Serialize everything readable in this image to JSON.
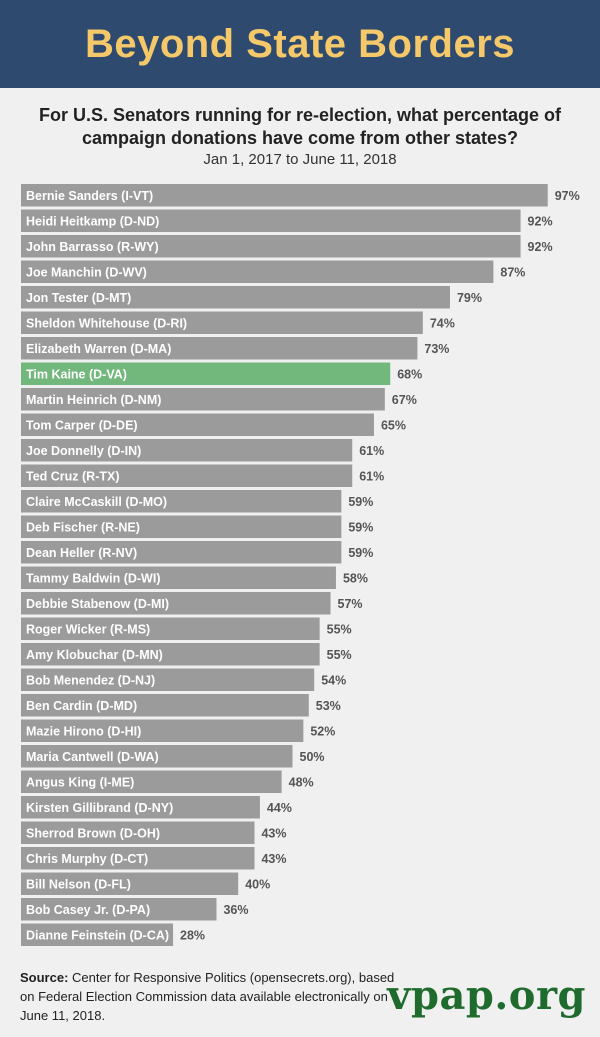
{
  "header": {
    "title": "Beyond State Borders"
  },
  "subtitle": "For U.S. Senators running for re-election, what percentage of campaign donations have come from other states?",
  "date_range": "Jan 1, 2017 to June 11, 2018",
  "source": {
    "label": "Source:",
    "text": " Center for Responsive Politics (opensecrets.org), based on Federal Election Commission data available electronically on June 11, 2018."
  },
  "logo": "vpap.org",
  "colors": {
    "bar": "#9b9b9b",
    "highlight": "#72b77b",
    "banner": "#2e4a6e",
    "title": "#f5c96a",
    "logo": "#1f6b2e"
  },
  "chart_data": {
    "type": "bar",
    "orientation": "horizontal",
    "title": "Beyond State Borders",
    "value_format": "percent",
    "xlim": [
      0,
      100
    ],
    "highlight": "Tim Kaine (D-VA)",
    "categories": [
      "Bernie Sanders (I-VT)",
      "Heidi Heitkamp (D-ND)",
      "John Barrasso (R-WY)",
      "Joe Manchin (D-WV)",
      "Jon Tester (D-MT)",
      "Sheldon Whitehouse (D-RI)",
      "Elizabeth Warren (D-MA)",
      "Tim Kaine (D-VA)",
      "Martin Heinrich (D-NM)",
      "Tom Carper (D-DE)",
      "Joe Donnelly (D-IN)",
      "Ted Cruz (R-TX)",
      "Claire McCaskill (D-MO)",
      "Deb Fischer (R-NE)",
      "Dean Heller (R-NV)",
      "Tammy Baldwin (D-WI)",
      "Debbie Stabenow (D-MI)",
      "Roger Wicker (R-MS)",
      "Amy Klobuchar (D-MN)",
      "Bob Menendez (D-NJ)",
      "Ben Cardin (D-MD)",
      "Mazie Hirono (D-HI)",
      "Maria Cantwell (D-WA)",
      "Angus King (I-ME)",
      "Kirsten Gillibrand (D-NY)",
      "Sherrod Brown (D-OH)",
      "Chris Murphy (D-CT)",
      "Bill Nelson (D-FL)",
      "Bob Casey Jr. (D-PA)",
      "Dianne Feinstein (D-CA)"
    ],
    "values": [
      97,
      92,
      92,
      87,
      79,
      74,
      73,
      68,
      67,
      65,
      61,
      61,
      59,
      59,
      59,
      58,
      57,
      55,
      55,
      54,
      53,
      52,
      50,
      48,
      44,
      43,
      43,
      40,
      36,
      28
    ]
  }
}
